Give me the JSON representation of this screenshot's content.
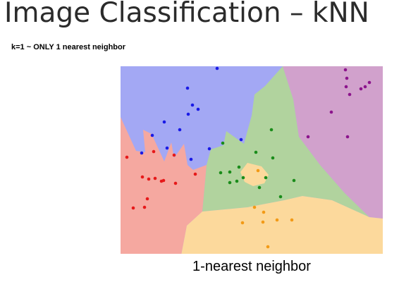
{
  "slide": {
    "title": "Image Classification – kNN",
    "subtitle": "k=1 ~ ONLY 1 nearest neighbor"
  },
  "figure": {
    "caption": "1-nearest neighbor",
    "regions": {
      "blue": "#a3a8f4",
      "red": "#f5a8a0",
      "green": "#b1d39e",
      "purple": "#d1a1cc",
      "yellow": "#fcd99c"
    },
    "points": {
      "blue": "#1a1ae6",
      "red": "#e6191a",
      "green": "#1a8c1a",
      "purple": "#8c148c",
      "yellow": "#f29a16"
    }
  }
}
